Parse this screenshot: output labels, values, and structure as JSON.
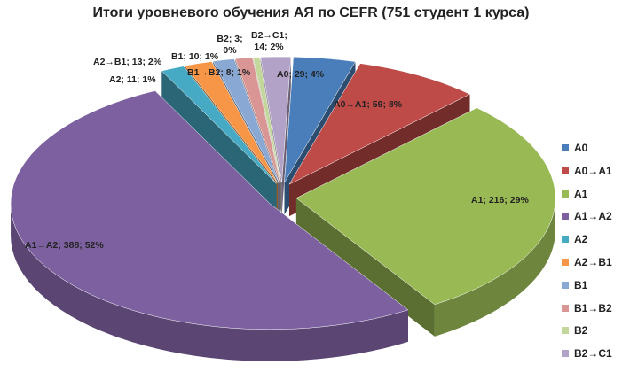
{
  "chart_data": {
    "type": "pie3d",
    "title": "Итоги уровневого обучения АЯ по CEFR (751 студент 1 курса)",
    "categories": [
      "A0",
      "A0→A1",
      "A1",
      "A1→A2",
      "A2",
      "A2→B1",
      "B1",
      "B1→B2",
      "B2",
      "B2→C1"
    ],
    "values": [
      29,
      59,
      216,
      388,
      11,
      13,
      10,
      8,
      3,
      14
    ],
    "value_labels": [
      "A0; 29; 4%",
      "A0→A1; 59; 8%",
      "A1; 216; 29%",
      "A1→A2; 388; 52%",
      "A2; 11; 1%",
      "A2→B1; 13; 2%",
      "B1; 10; 1%",
      "B1→B2; 8; 1%",
      "B2; 3; 0%",
      "B2→C1; 14; 2%"
    ],
    "colors": [
      "#4a7ebb",
      "#be4b48",
      "#98b954",
      "#7d60a0",
      "#46aac5",
      "#f79646",
      "#8aa8d4",
      "#d99694",
      "#c3d69b",
      "#b3a2c7"
    ],
    "legend": "right"
  }
}
